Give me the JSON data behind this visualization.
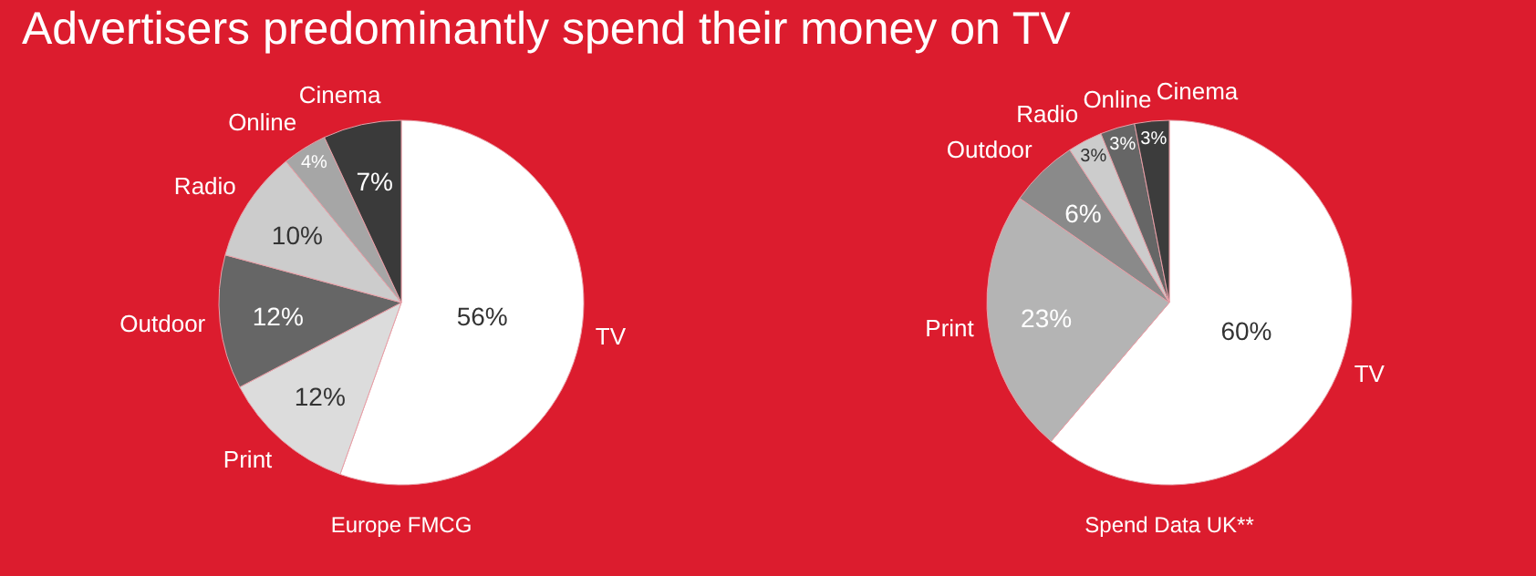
{
  "chart_data": [
    {
      "type": "pie",
      "title": "Advertisers predominantly spend their money on TV",
      "categories": [
        "TV",
        "Print",
        "Outdoor",
        "Radio",
        "Online",
        "Cinema"
      ],
      "values": [
        56,
        12,
        12,
        10,
        4,
        7
      ],
      "colors": [
        "#ffffff",
        "#dcdcdc",
        "#666666",
        "#cccccc",
        "#a6a6a6",
        "#3a3a3a"
      ],
      "value_labels": [
        "56%",
        "12%",
        "12%",
        "10%",
        "4%",
        "7%"
      ],
      "annotations": [
        "Europe FMCG"
      ]
    },
    {
      "type": "pie",
      "categories": [
        "TV",
        "Print",
        "Outdoor",
        "Radio",
        "Online",
        "Cinema"
      ],
      "values": [
        60,
        23,
        6,
        3,
        3,
        3
      ],
      "colors": [
        "#ffffff",
        "#b4b4b4",
        "#8a8a8a",
        "#cccccc",
        "#666666",
        "#3c3c3c"
      ],
      "value_labels": [
        "60%",
        "23%",
        "6%",
        "3%",
        "3%",
        "3%"
      ],
      "annotations": [
        "Spend Data UK**"
      ]
    }
  ]
}
